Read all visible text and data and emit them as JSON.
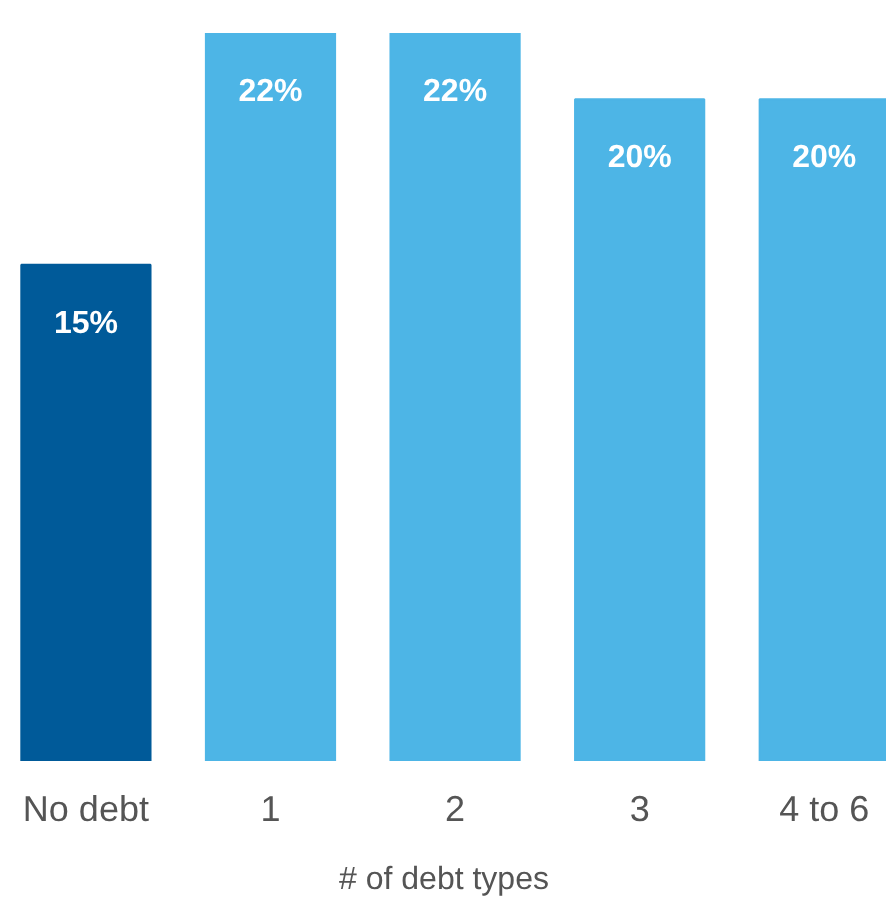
{
  "chart_data": {
    "type": "bar",
    "xlabel": "# of debt types",
    "categories": [
      "No debt",
      "1",
      "2",
      "3",
      "4 to 6"
    ],
    "values": [
      15,
      22,
      22,
      20,
      20
    ],
    "colors": [
      "#005a99",
      "#4db5e6",
      "#4db5e6",
      "#4db5e6",
      "#4db5e6"
    ],
    "value_labels": [
      "15%",
      "22%",
      "22%",
      "20%",
      "20%"
    ],
    "grid": false
  }
}
